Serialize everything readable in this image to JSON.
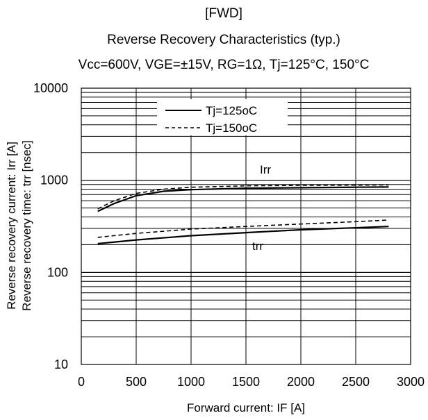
{
  "chart_data": {
    "type": "line",
    "title_lines": [
      "[FWD]",
      "Reverse Recovery Characteristics (typ.)",
      "Vcc=600V, VGE=±15V, RG=1Ω, Tj=125°C, 150°C"
    ],
    "xlabel": "Forward current: IF [A]",
    "ylabel_lines": [
      "Reverse recovery current: Irr [A]",
      "Reverse recovery time: trr [nsec]"
    ],
    "xlim": [
      0,
      3000
    ],
    "ylim": [
      10,
      10000
    ],
    "y_scale": "log",
    "grid": true,
    "x_ticks": [
      "0",
      "500",
      "1000",
      "1500",
      "2000",
      "2500",
      "3000"
    ],
    "y_ticks": [
      "10",
      "100",
      "1000",
      "10000"
    ],
    "legend": {
      "placement": "top-center",
      "entries": [
        {
          "label": "Tj=125oC",
          "style": "solid"
        },
        {
          "label": "Tj=150oC",
          "style": "dashed"
        }
      ]
    },
    "annotations": [
      "Irr",
      "trr"
    ],
    "series": [
      {
        "group": "Irr",
        "tj": "125",
        "style": "solid",
        "x": [
          150,
          300,
          500,
          750,
          1000,
          1500,
          2000,
          2500,
          2800
        ],
        "y": [
          460,
          560,
          680,
          760,
          790,
          820,
          830,
          840,
          845
        ]
      },
      {
        "group": "Irr",
        "tj": "150",
        "style": "dashed",
        "x": [
          150,
          300,
          500,
          750,
          1000,
          1500,
          2000,
          2500,
          2800
        ],
        "y": [
          490,
          600,
          720,
          800,
          840,
          870,
          880,
          885,
          890
        ]
      },
      {
        "group": "trr",
        "tj": "125",
        "style": "solid",
        "x": [
          150,
          500,
          1000,
          1500,
          2000,
          2500,
          2800
        ],
        "y": [
          205,
          225,
          250,
          270,
          290,
          305,
          315
        ]
      },
      {
        "group": "trr",
        "tj": "150",
        "style": "dashed",
        "x": [
          150,
          500,
          1000,
          1500,
          2000,
          2500,
          2800
        ],
        "y": [
          240,
          265,
          295,
          315,
          335,
          355,
          370
        ]
      }
    ]
  }
}
